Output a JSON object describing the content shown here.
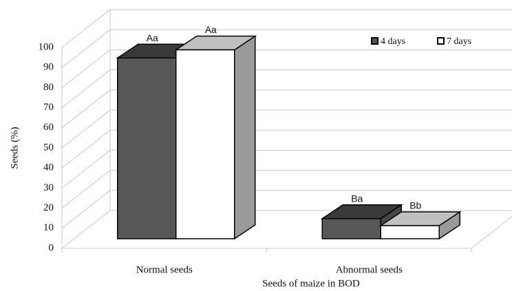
{
  "chart_data": {
    "type": "bar3d",
    "categories": [
      "Normal seeds",
      "Abnormal seeds"
    ],
    "series": [
      {
        "name": "4 days",
        "color": "#575757",
        "values": [
          90,
          10
        ],
        "labels": [
          "Aa",
          "Ba"
        ]
      },
      {
        "name": "7 days",
        "color": "#ffffff",
        "values": [
          94,
          6.5
        ],
        "labels": [
          "Aa",
          "Bb"
        ]
      }
    ],
    "xlabel": "Seeds of maize in BOD",
    "ylabel": "Seeds (%)",
    "ylim": [
      0,
      100
    ],
    "yticks": [
      0,
      10,
      20,
      30,
      40,
      50,
      60,
      70,
      80,
      90,
      100
    ],
    "grid": true,
    "legend": "top-right"
  }
}
